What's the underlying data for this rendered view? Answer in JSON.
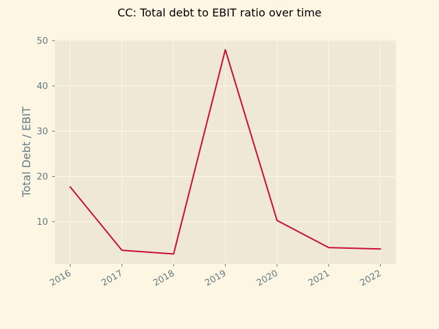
{
  "chart_data": {
    "type": "line",
    "title": "CC: Total debt to EBIT ratio over time",
    "xlabel": "",
    "ylabel": "Total Debt / EBIT",
    "x": [
      "2016",
      "2017",
      "2018",
      "2019",
      "2020",
      "2021",
      "2022"
    ],
    "series": [
      {
        "values": [
          17.7,
          3.7,
          2.9,
          48.0,
          10.3,
          4.3,
          4.0
        ]
      }
    ],
    "yticks": [
      10,
      20,
      30,
      40,
      50
    ],
    "ylim": [
      0.7,
      50.2
    ],
    "grid": true,
    "legend": "none",
    "colors": {
      "background": "#fdf6e3",
      "plot_area": "#eee8d5",
      "line": "#cb0c39",
      "grid": "#fdf6e3",
      "text": "#657b83"
    }
  }
}
